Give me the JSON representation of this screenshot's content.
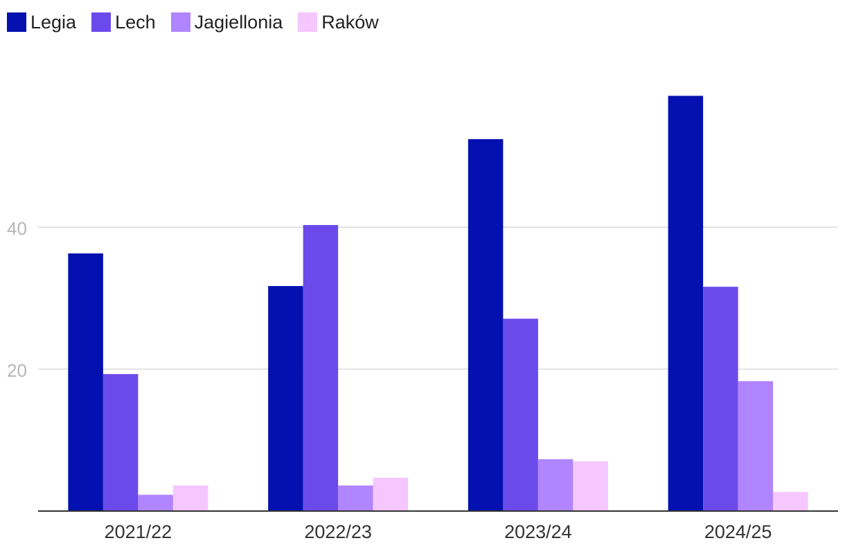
{
  "chart_data": {
    "type": "bar",
    "categories": [
      "2021/22",
      "2022/23",
      "2023/24",
      "2024/25"
    ],
    "series": [
      {
        "name": "Legia",
        "color": "#0410b0",
        "values": [
          36.3,
          31.7,
          52.4,
          58.5
        ]
      },
      {
        "name": "Lech",
        "color": "#6b4aeb",
        "values": [
          19.3,
          40.3,
          27.1,
          31.6
        ]
      },
      {
        "name": "Jagiellonia",
        "color": "#b085ff",
        "values": [
          2.3,
          3.6,
          7.3,
          18.3
        ]
      },
      {
        "name": "Raków",
        "color": "#f5c6ff",
        "values": [
          3.6,
          4.7,
          7.0,
          2.7
        ]
      }
    ],
    "yticks": [
      20,
      40
    ],
    "ylim": [
      0,
      63.2
    ],
    "grid": true,
    "legend": "top-left",
    "title": "",
    "xlabel": "",
    "ylabel": ""
  }
}
